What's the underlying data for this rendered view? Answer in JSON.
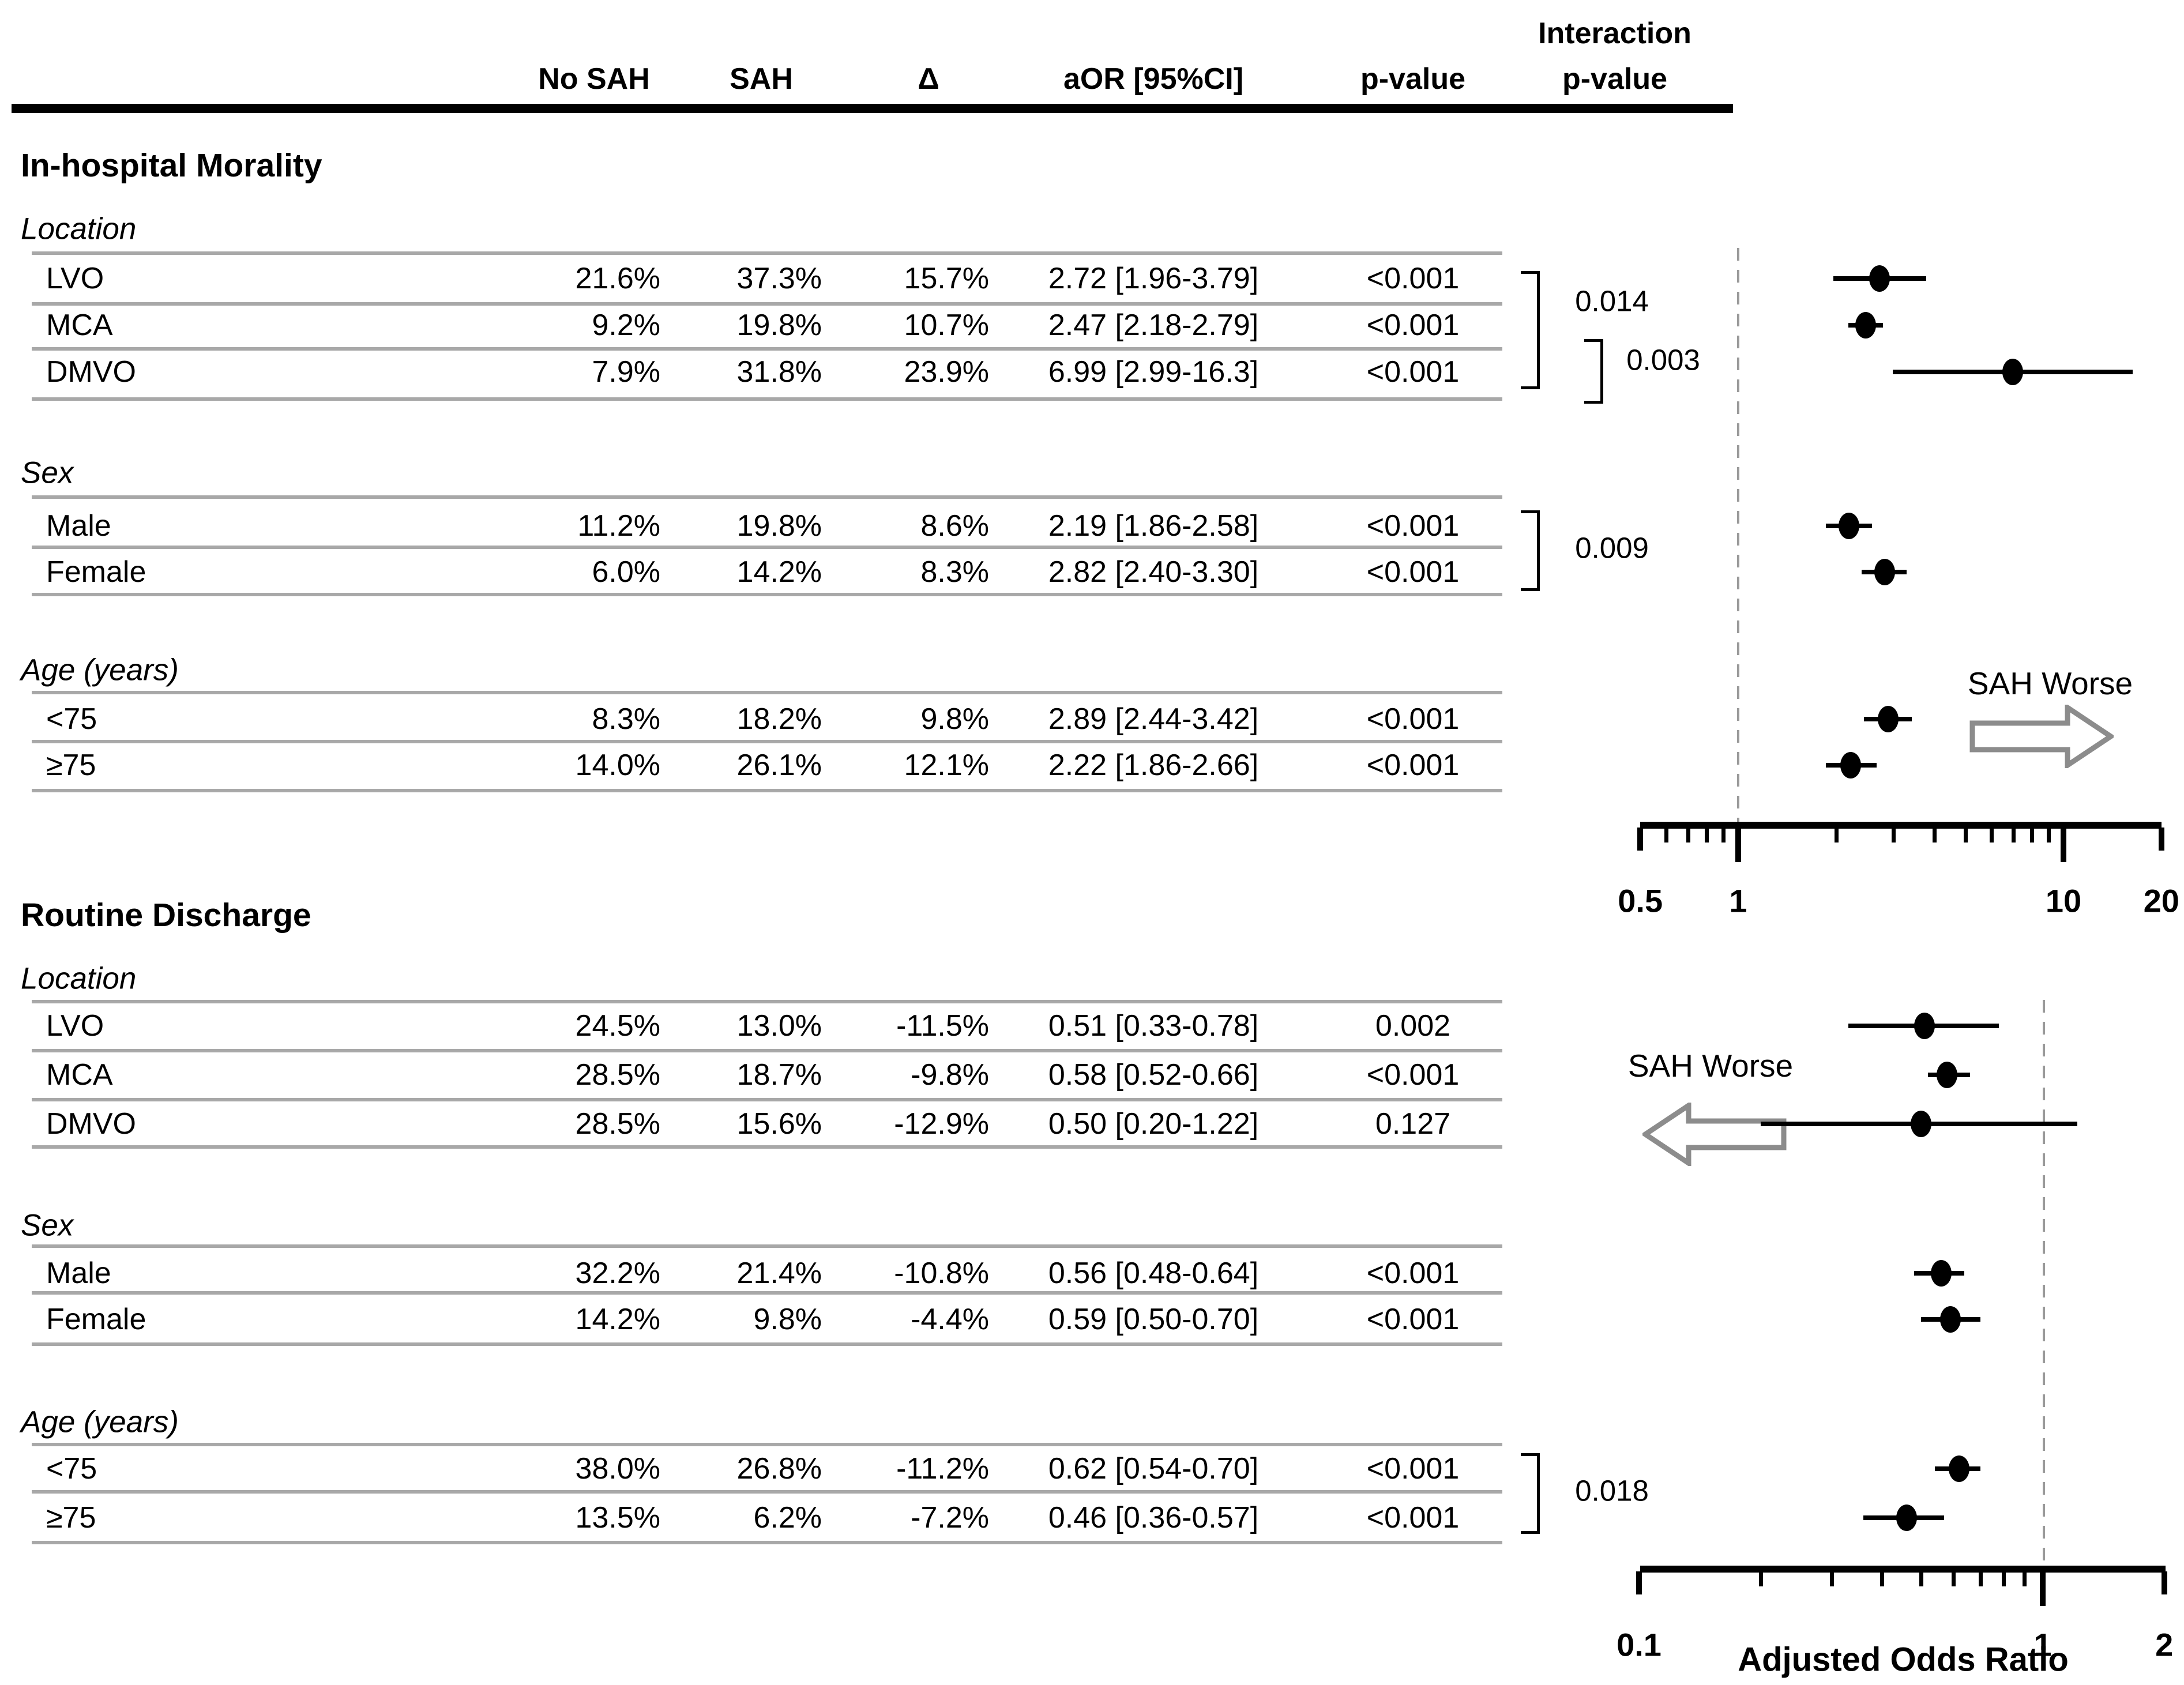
{
  "figure": {
    "header": {
      "no_sah": "No SAH",
      "sah": "SAH",
      "delta": "Δ",
      "aor": "aOR [95%CI]",
      "p": "p-value",
      "interaction1": "Interaction",
      "interaction2": "p-value"
    },
    "sections": [
      {
        "title": "In-hospital Morality",
        "direction_label": "SAH Worse",
        "direction": "right",
        "interaction_labels": [
          "0.014",
          "0.003",
          "0.009"
        ],
        "x_axis": {
          "labeled_ticks": [
            "0.5",
            "1",
            "10",
            "20"
          ],
          "labeled_values": [
            0.5,
            1,
            10,
            20
          ],
          "minor_values": [
            0.6,
            0.7,
            0.8,
            0.9,
            2,
            3,
            4,
            5,
            6,
            7,
            8,
            9
          ],
          "reference_value": 1
        },
        "groups": [
          {
            "label": "Location",
            "rows": [
              {
                "label": "LVO",
                "no_sah": "21.6%",
                "sah": "37.3%",
                "delta": "15.7%",
                "aor": "2.72 [1.96-3.79]",
                "p": "<0.001",
                "or": 2.72,
                "ci": [
                  1.96,
                  3.79
                ]
              },
              {
                "label": "MCA",
                "no_sah": "9.2%",
                "sah": "19.8%",
                "delta": "10.7%",
                "aor": "2.47 [2.18-2.79]",
                "p": "<0.001",
                "or": 2.47,
                "ci": [
                  2.18,
                  2.79
                ]
              },
              {
                "label": "DMVO",
                "no_sah": "7.9%",
                "sah": "31.8%",
                "delta": "23.9%",
                "aor": "6.99 [2.99-16.3]",
                "p": "<0.001",
                "or": 6.99,
                "ci": [
                  2.99,
                  16.3
                ]
              }
            ]
          },
          {
            "label": "Sex",
            "rows": [
              {
                "label": "Male",
                "no_sah": "11.2%",
                "sah": "19.8%",
                "delta": "8.6%",
                "aor": "2.19 [1.86-2.58]",
                "p": "<0.001",
                "or": 2.19,
                "ci": [
                  1.86,
                  2.58
                ]
              },
              {
                "label": "Female",
                "no_sah": "6.0%",
                "sah": "14.2%",
                "delta": "8.3%",
                "aor": "2.82 [2.40-3.30]",
                "p": "<0.001",
                "or": 2.82,
                "ci": [
                  2.4,
                  3.3
                ]
              }
            ]
          },
          {
            "label": "Age (years)",
            "rows": [
              {
                "label": "<75",
                "no_sah": "8.3%",
                "sah": "18.2%",
                "delta": "9.8%",
                "aor": "2.89 [2.44-3.42]",
                "p": "<0.001",
                "or": 2.89,
                "ci": [
                  2.44,
                  3.42
                ]
              },
              {
                "label": "≥75",
                "no_sah": "14.0%",
                "sah": "26.1%",
                "delta": "12.1%",
                "aor": "2.22 [1.86-2.66]",
                "p": "<0.001",
                "or": 2.22,
                "ci": [
                  1.86,
                  2.66
                ]
              }
            ]
          }
        ]
      },
      {
        "title": "Routine Discharge",
        "direction_label": "SAH Worse",
        "direction": "left",
        "x_axis_title": "Adjusted Odds Ratio",
        "interaction_labels": [
          "0.018"
        ],
        "x_axis": {
          "labeled_ticks": [
            "0.1",
            "1",
            "2"
          ],
          "labeled_values": [
            0.1,
            1,
            2
          ],
          "minor_values": [
            0.2,
            0.3,
            0.4,
            0.5,
            0.6,
            0.7,
            0.8,
            0.9
          ],
          "reference_value": 1
        },
        "groups": [
          {
            "label": "Location",
            "rows": [
              {
                "label": "LVO",
                "no_sah": "24.5%",
                "sah": "13.0%",
                "delta": "-11.5%",
                "aor": "0.51 [0.33-0.78]",
                "p": "0.002",
                "or": 0.51,
                "ci": [
                  0.33,
                  0.78
                ]
              },
              {
                "label": "MCA",
                "no_sah": "28.5%",
                "sah": "18.7%",
                "delta": "-9.8%",
                "aor": "0.58 [0.52-0.66]",
                "p": "<0.001",
                "or": 0.58,
                "ci": [
                  0.52,
                  0.66
                ]
              },
              {
                "label": "DMVO",
                "no_sah": "28.5%",
                "sah": "15.6%",
                "delta": "-12.9%",
                "aor": "0.50 [0.20-1.22]",
                "p": "0.127",
                "or": 0.5,
                "ci": [
                  0.2,
                  1.22
                ]
              }
            ]
          },
          {
            "label": "Sex",
            "rows": [
              {
                "label": "Male",
                "no_sah": "32.2%",
                "sah": "21.4%",
                "delta": "-10.8%",
                "aor": "0.56 [0.48-0.64]",
                "p": "<0.001",
                "or": 0.56,
                "ci": [
                  0.48,
                  0.64
                ]
              },
              {
                "label": "Female",
                "no_sah": "14.2%",
                "sah": "9.8%",
                "delta": "-4.4%",
                "aor": "0.59 [0.50-0.70]",
                "p": "<0.001",
                "or": 0.59,
                "ci": [
                  0.5,
                  0.7
                ]
              }
            ]
          },
          {
            "label": "Age (years)",
            "rows": [
              {
                "label": "<75",
                "no_sah": "38.0%",
                "sah": "26.8%",
                "delta": "-11.2%",
                "aor": "0.62 [0.54-0.70]",
                "p": "<0.001",
                "or": 0.62,
                "ci": [
                  0.54,
                  0.7
                ]
              },
              {
                "label": "≥75",
                "no_sah": "13.5%",
                "sah": "6.2%",
                "delta": "-7.2%",
                "aor": "0.46 [0.36-0.57]",
                "p": "<0.001",
                "or": 0.46,
                "ci": [
                  0.36,
                  0.57
                ]
              }
            ]
          }
        ]
      }
    ]
  },
  "chart_data": [
    {
      "type": "scatter",
      "title": "In-hospital Morality forest plot",
      "xlabel": "Adjusted Odds Ratio",
      "xscale": "log",
      "xlim": [
        0.5,
        20
      ],
      "x_ticks": [
        0.5,
        1,
        10,
        20
      ],
      "reference_line": 1,
      "legend_position": "none",
      "grid": false,
      "categories": [
        "LVO",
        "MCA",
        "DMVO",
        "Male",
        "Female",
        "<75",
        "≥75"
      ],
      "series": [
        {
          "name": "aOR",
          "values": [
            2.72,
            2.47,
            6.99,
            2.19,
            2.82,
            2.89,
            2.22
          ]
        },
        {
          "name": "ci_low",
          "values": [
            1.96,
            2.18,
            2.99,
            1.86,
            2.4,
            2.44,
            1.86
          ]
        },
        {
          "name": "ci_high",
          "values": [
            3.79,
            2.79,
            16.3,
            2.58,
            3.3,
            3.42,
            2.66
          ]
        }
      ],
      "annotations": [
        "SAH Worse (arrow pointing right)",
        "interaction p: 0.014 LVO vs DMVO, 0.003 MCA vs DMVO, 0.009 Male vs Female"
      ]
    },
    {
      "type": "scatter",
      "title": "Routine Discharge forest plot",
      "xlabel": "Adjusted Odds Ratio",
      "xscale": "log",
      "xlim": [
        0.1,
        2
      ],
      "x_ticks": [
        0.1,
        1,
        2
      ],
      "reference_line": 1,
      "legend_position": "none",
      "grid": false,
      "categories": [
        "LVO",
        "MCA",
        "DMVO",
        "Male",
        "Female",
        "<75",
        "≥75"
      ],
      "series": [
        {
          "name": "aOR",
          "values": [
            0.51,
            0.58,
            0.5,
            0.56,
            0.59,
            0.62,
            0.46
          ]
        },
        {
          "name": "ci_low",
          "values": [
            0.33,
            0.52,
            0.2,
            0.48,
            0.5,
            0.54,
            0.36
          ]
        },
        {
          "name": "ci_high",
          "values": [
            0.78,
            0.66,
            1.22,
            0.64,
            0.7,
            0.7,
            0.57
          ]
        }
      ],
      "annotations": [
        "SAH Worse (arrow pointing left)",
        "interaction p: 0.018 <75 vs ≥75"
      ]
    }
  ],
  "colors": {
    "text": "#000000",
    "separator": "#a8a8a8",
    "reference_dash": "#9a9a9a",
    "arrow_outline": "#8c8c8c",
    "marker": "#000000"
  }
}
